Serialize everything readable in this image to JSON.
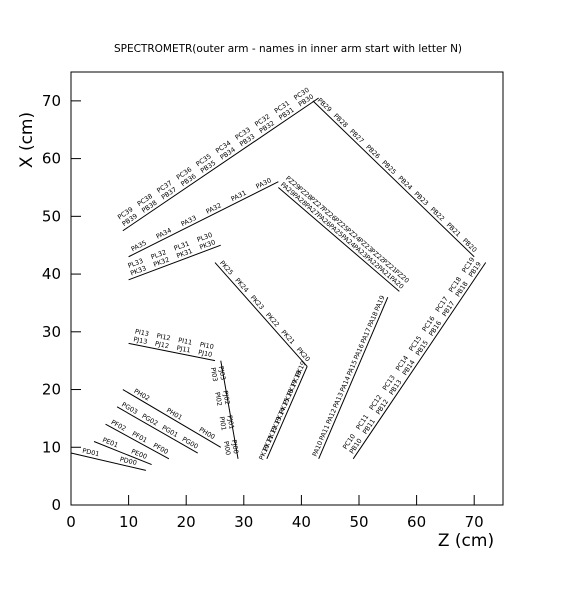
{
  "chart_data": {
    "type": "segments",
    "title": "SPECTROMETR(outer arm - names in inner arm start with letter N)",
    "xlabel": "Z (cm)",
    "ylabel": "X (cm)",
    "xlim": [
      0,
      75
    ],
    "ylim": [
      0,
      75
    ],
    "xticks": [
      0,
      10,
      20,
      30,
      40,
      50,
      60,
      70
    ],
    "yticks": [
      0,
      10,
      20,
      30,
      40,
      50,
      60,
      70
    ],
    "color": "#000000",
    "segments": [
      {
        "x": [
          9,
          43
        ],
        "y": [
          47.5,
          70.5
        ],
        "labels": [
          "PB39",
          "PB38",
          "PB37",
          "PB36",
          "PB35",
          "PB34",
          "PB33",
          "PB32",
          "PB31",
          "PB30"
        ],
        "outer_labels": [
          "PC39",
          "PC38",
          "PC37",
          "PC36",
          "PC35",
          "PC34",
          "PC33",
          "PC32",
          "PC31",
          "PC30"
        ]
      },
      {
        "x": [
          42,
          70
        ],
        "y": [
          70,
          43
        ],
        "labels": [
          "PB29",
          "PB28",
          "PB27",
          "PB26",
          "PB25",
          "PB24",
          "PB23",
          "PB22",
          "PB21",
          "PB20"
        ]
      },
      {
        "x": [
          72,
          49
        ],
        "y": [
          42,
          8
        ],
        "labels": [
          "PB19",
          "PB18",
          "PB17",
          "PB16",
          "PB15",
          "PB14",
          "PB13",
          "PB12",
          "PB11",
          "PB10"
        ],
        "outer_labels": [
          "PC19",
          "PC18",
          "PC17",
          "PC16",
          "PC15",
          "PC14",
          "PC13",
          "PC12",
          "PC11",
          "PC10"
        ]
      },
      {
        "x": [
          10,
          36
        ],
        "y": [
          43,
          56
        ],
        "labels": [
          "PA35",
          "PA34",
          "PA33",
          "PA32",
          "PA31",
          "PA30"
        ]
      },
      {
        "x": [
          36,
          57
        ],
        "y": [
          55,
          37
        ],
        "labels": [
          "PA29",
          "PA28",
          "PA27",
          "PA26",
          "PA25",
          "PA24",
          "PA23",
          "PA22",
          "PA21",
          "PA20"
        ],
        "outer_labels": [
          "PZ29",
          "PZ28",
          "PZ27",
          "PZ26",
          "PZ25",
          "PZ24",
          "PZ23",
          "PZ22",
          "PZ21",
          "PZ20"
        ]
      },
      {
        "x": [
          55,
          43
        ],
        "y": [
          36,
          8
        ],
        "labels": [
          "PA19",
          "PA18",
          "PA17",
          "PA16",
          "PA15",
          "PA14",
          "PA13",
          "PA12",
          "PA11",
          "PA10"
        ]
      },
      {
        "x": [
          10,
          26
        ],
        "y": [
          39,
          45
        ],
        "labels": [
          "PK33",
          "PK32",
          "PK31",
          "PK30"
        ],
        "outer_labels": [
          "PL33",
          "PL32",
          "PL31",
          "PL30"
        ]
      },
      {
        "x": [
          25,
          41
        ],
        "y": [
          42,
          24
        ],
        "labels": [
          "PK25",
          "PK24",
          "PK23",
          "PK22",
          "PK21",
          "PK20"
        ]
      },
      {
        "x": [
          41,
          34
        ],
        "y": [
          24,
          8
        ],
        "labels": [
          "PK19",
          "PK18",
          "PK17",
          "PK16",
          "PK15",
          "PK14",
          "PK13",
          "PK12",
          "PK11",
          "PK10"
        ]
      },
      {
        "x": [
          10,
          25
        ],
        "y": [
          28,
          25
        ],
        "labels": [
          "PJ13",
          "PJ12",
          "PJ11",
          "PJ10"
        ],
        "outer_labels": [
          "PI13",
          "PI12",
          "PI11",
          "PI10"
        ]
      },
      {
        "x": [
          26,
          29
        ],
        "y": [
          25,
          8
        ],
        "labels": [
          "PJ03",
          "PJ02",
          "PJ01",
          "PJ00"
        ],
        "outer_labels": [
          "PI03",
          "PI02",
          "PI01",
          "PI00"
        ]
      },
      {
        "x": [
          9,
          26
        ],
        "y": [
          20,
          10
        ],
        "labels": [
          "PH02",
          "PH01",
          "PH00"
        ]
      },
      {
        "x": [
          8,
          22
        ],
        "y": [
          17,
          9
        ],
        "labels": [
          "PG03",
          "PG02",
          "PG01",
          "PG00"
        ]
      },
      {
        "x": [
          6,
          17
        ],
        "y": [
          14,
          8
        ],
        "labels": [
          "PF02",
          "PF01",
          "PF00"
        ]
      },
      {
        "x": [
          4,
          14
        ],
        "y": [
          11,
          7
        ],
        "labels": [
          "PE01",
          "PE00"
        ]
      },
      {
        "x": [
          0,
          13
        ],
        "y": [
          9,
          6
        ],
        "labels": [
          "PD01",
          "PD00"
        ]
      }
    ]
  }
}
